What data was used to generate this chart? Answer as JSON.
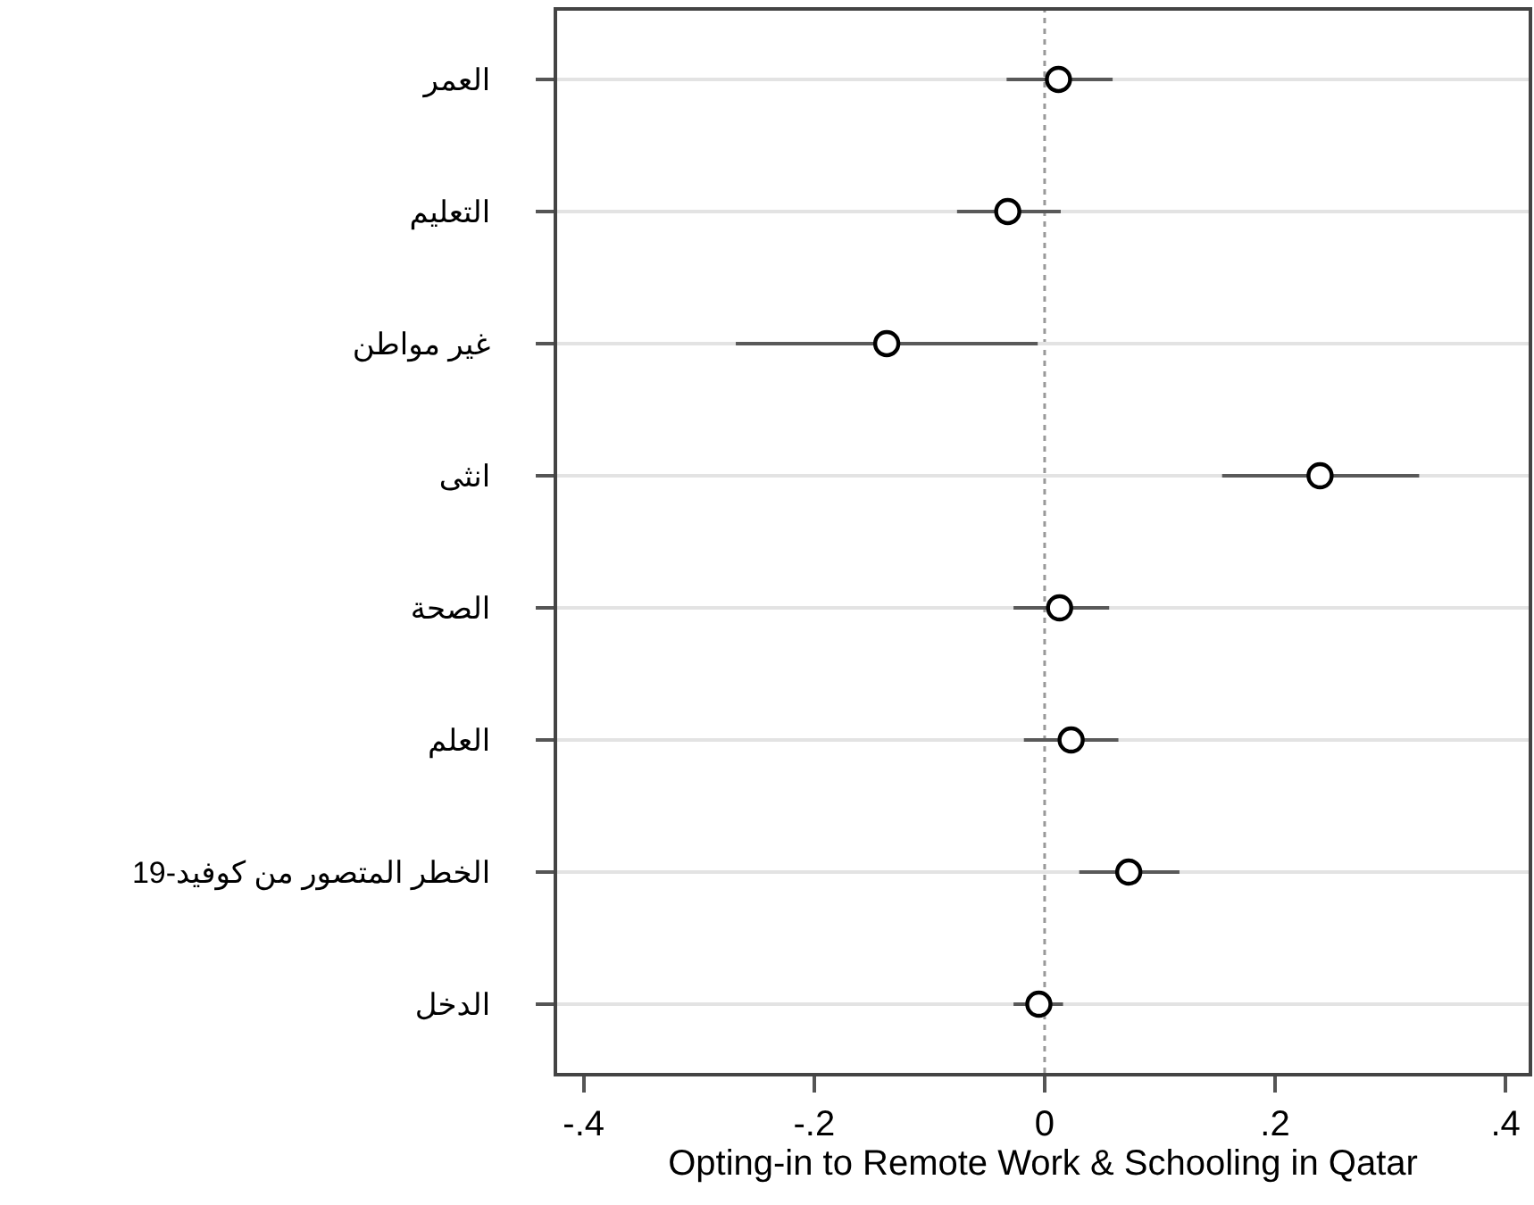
{
  "chart_data": {
    "type": "scatter",
    "orientation": "horizontal",
    "categories": [
      "العمر",
      "التعليم",
      "غير مواطن",
      "انثى",
      "الصحة",
      "العلم",
      "الخطر المتصور من كوفيد-19",
      "الدخل"
    ],
    "values": [
      0.012,
      -0.032,
      -0.137,
      0.239,
      0.013,
      0.023,
      0.073,
      -0.005
    ],
    "errors": [
      [
        -0.033,
        0.059
      ],
      [
        -0.076,
        0.014
      ],
      [
        -0.268,
        -0.006
      ],
      [
        0.154,
        0.325
      ],
      [
        -0.027,
        0.056
      ],
      [
        -0.018,
        0.064
      ],
      [
        0.03,
        0.117
      ],
      [
        -0.027,
        0.016
      ]
    ],
    "color": "#000000",
    "marker": "circle",
    "xlabel": "Opting-in to Remote Work & Schooling in Qatar",
    "xlim": [
      -0.423,
      0.42
    ],
    "xticks": [
      {
        "value": -0.4,
        "label": "-.4"
      },
      {
        "value": -0.2,
        "label": "-.2"
      },
      0,
      {
        "value": 0.2,
        "label": ".2"
      },
      {
        "value": 0.4,
        "label": ".4"
      }
    ],
    "grid": "y",
    "ref_lines": [
      {
        "axis": "x",
        "value": 0,
        "label": null,
        "color": "#999999",
        "line_style": "dotted"
      }
    ]
  }
}
